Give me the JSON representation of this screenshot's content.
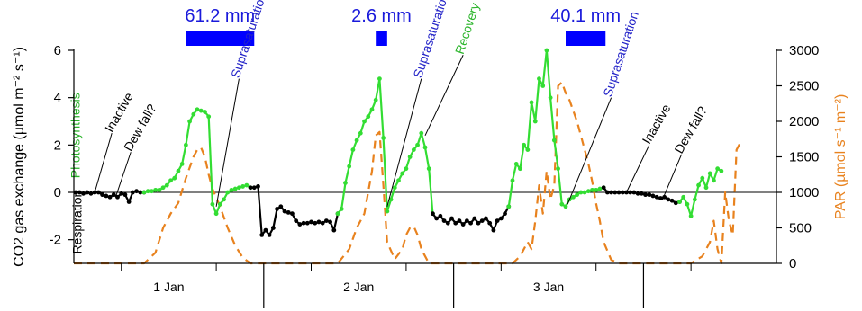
{
  "chart_data": {
    "type": "line",
    "left_axis": {
      "label": "CO2 gas exchange (µmol m⁻² s⁻¹)",
      "ylim": [
        -3,
        6
      ],
      "ticks": [
        -2,
        0,
        2,
        4,
        6
      ]
    },
    "right_axis": {
      "label": "PAR (µmol s⁻¹ m⁻²)",
      "ylim": [
        0,
        3000
      ],
      "ticks": [
        0,
        500,
        1000,
        1500,
        2000,
        2500,
        3000
      ],
      "color": "#e8821e"
    },
    "x_axis": {
      "xlim": [
        0.25,
        3.95
      ],
      "day_labels": [
        {
          "x": 0.75,
          "label": "1 Jan"
        },
        {
          "x": 1.75,
          "label": "2 Jan"
        },
        {
          "x": 2.75,
          "label": "3 Jan"
        }
      ],
      "major_ticks": [
        1.25,
        2.25,
        3.25
      ],
      "minor_ticks": [
        0.5,
        1.0,
        1.5,
        2.0,
        2.5,
        3.0,
        3.5
      ]
    },
    "rain_events": [
      {
        "label": "61.2 mm",
        "start": 0.84,
        "end": 1.2
      },
      {
        "label": "2.6 mm",
        "start": 1.84,
        "end": 1.9
      },
      {
        "label": "40.1 mm",
        "start": 2.84,
        "end": 3.05
      }
    ],
    "colors": {
      "photosynthesis": "#33dd33",
      "respiration": "#000000",
      "par": "#e8821e",
      "rain": "#0000ff"
    },
    "co2_exchange": [
      {
        "x": 0.26,
        "y": 0.0
      },
      {
        "x": 0.28,
        "y": 0.0
      },
      {
        "x": 0.3,
        "y": -0.05
      },
      {
        "x": 0.32,
        "y": 0.0
      },
      {
        "x": 0.34,
        "y": -0.05
      },
      {
        "x": 0.36,
        "y": 0.0
      },
      {
        "x": 0.38,
        "y": 0.0
      },
      {
        "x": 0.4,
        "y": -0.1
      },
      {
        "x": 0.42,
        "y": -0.15
      },
      {
        "x": 0.44,
        "y": -0.2
      },
      {
        "x": 0.46,
        "y": -0.1
      },
      {
        "x": 0.48,
        "y": -0.2
      },
      {
        "x": 0.5,
        "y": -0.05
      },
      {
        "x": 0.52,
        "y": -0.1
      },
      {
        "x": 0.54,
        "y": -0.4
      },
      {
        "x": 0.56,
        "y": 0.0
      },
      {
        "x": 0.58,
        "y": 0.05
      },
      {
        "x": 0.6,
        "y": 0.0
      },
      {
        "x": 0.62,
        "y": 0.0
      },
      {
        "x": 0.64,
        "y": 0.05
      },
      {
        "x": 0.66,
        "y": 0.05
      },
      {
        "x": 0.68,
        "y": 0.1
      },
      {
        "x": 0.7,
        "y": 0.1
      },
      {
        "x": 0.72,
        "y": 0.2
      },
      {
        "x": 0.74,
        "y": 0.3
      },
      {
        "x": 0.76,
        "y": 0.5
      },
      {
        "x": 0.78,
        "y": 0.6
      },
      {
        "x": 0.8,
        "y": 0.9
      },
      {
        "x": 0.82,
        "y": 1.2
      },
      {
        "x": 0.84,
        "y": 2.0
      },
      {
        "x": 0.86,
        "y": 3.0
      },
      {
        "x": 0.88,
        "y": 3.3
      },
      {
        "x": 0.9,
        "y": 3.5
      },
      {
        "x": 0.92,
        "y": 3.45
      },
      {
        "x": 0.94,
        "y": 3.4
      },
      {
        "x": 0.96,
        "y": 3.2
      },
      {
        "x": 0.98,
        "y": -0.5
      },
      {
        "x": 1.0,
        "y": -0.9
      },
      {
        "x": 1.02,
        "y": -0.5
      },
      {
        "x": 1.04,
        "y": -0.3
      },
      {
        "x": 1.06,
        "y": 0.0
      },
      {
        "x": 1.08,
        "y": 0.1
      },
      {
        "x": 1.1,
        "y": 0.15
      },
      {
        "x": 1.12,
        "y": 0.2
      },
      {
        "x": 1.14,
        "y": 0.25
      },
      {
        "x": 1.16,
        "y": 0.3
      },
      {
        "x": 1.18,
        "y": 0.2
      },
      {
        "x": 1.2,
        "y": 0.2
      },
      {
        "x": 1.22,
        "y": 0.25
      },
      {
        "x": 1.24,
        "y": -1.8
      },
      {
        "x": 1.26,
        "y": -1.6
      },
      {
        "x": 1.28,
        "y": -1.8
      },
      {
        "x": 1.3,
        "y": -1.5
      },
      {
        "x": 1.32,
        "y": -0.7
      },
      {
        "x": 1.34,
        "y": -0.6
      },
      {
        "x": 1.36,
        "y": -0.8
      },
      {
        "x": 1.38,
        "y": -0.85
      },
      {
        "x": 1.4,
        "y": -0.9
      },
      {
        "x": 1.42,
        "y": -1.2
      },
      {
        "x": 1.44,
        "y": -1.35
      },
      {
        "x": 1.46,
        "y": -1.3
      },
      {
        "x": 1.48,
        "y": -1.3
      },
      {
        "x": 1.5,
        "y": -1.25
      },
      {
        "x": 1.52,
        "y": -1.3
      },
      {
        "x": 1.54,
        "y": -1.25
      },
      {
        "x": 1.56,
        "y": -1.3
      },
      {
        "x": 1.58,
        "y": -1.2
      },
      {
        "x": 1.6,
        "y": -1.25
      },
      {
        "x": 1.62,
        "y": -1.6
      },
      {
        "x": 1.64,
        "y": -0.9
      },
      {
        "x": 1.66,
        "y": -0.7
      },
      {
        "x": 1.68,
        "y": 0.4
      },
      {
        "x": 1.7,
        "y": 1.1
      },
      {
        "x": 1.72,
        "y": 1.8
      },
      {
        "x": 1.74,
        "y": 2.2
      },
      {
        "x": 1.76,
        "y": 2.5
      },
      {
        "x": 1.78,
        "y": 3.0
      },
      {
        "x": 1.8,
        "y": 3.2
      },
      {
        "x": 1.82,
        "y": 3.5
      },
      {
        "x": 1.84,
        "y": 3.9
      },
      {
        "x": 1.86,
        "y": 4.8
      },
      {
        "x": 1.88,
        "y": 2.3
      },
      {
        "x": 1.9,
        "y": -0.8
      },
      {
        "x": 1.92,
        "y": -0.3
      },
      {
        "x": 1.94,
        "y": 0.2
      },
      {
        "x": 1.96,
        "y": 0.5
      },
      {
        "x": 1.98,
        "y": 0.8
      },
      {
        "x": 2.0,
        "y": 1.0
      },
      {
        "x": 2.02,
        "y": 1.5
      },
      {
        "x": 2.04,
        "y": 1.8
      },
      {
        "x": 2.06,
        "y": 2.0
      },
      {
        "x": 2.08,
        "y": 2.5
      },
      {
        "x": 2.1,
        "y": 1.9
      },
      {
        "x": 2.12,
        "y": 1.0
      },
      {
        "x": 2.14,
        "y": -0.9
      },
      {
        "x": 2.16,
        "y": -1.1
      },
      {
        "x": 2.18,
        "y": -1.0
      },
      {
        "x": 2.2,
        "y": -1.2
      },
      {
        "x": 2.22,
        "y": -1.3
      },
      {
        "x": 2.24,
        "y": -1.1
      },
      {
        "x": 2.26,
        "y": -1.3
      },
      {
        "x": 2.28,
        "y": -1.2
      },
      {
        "x": 2.3,
        "y": -1.35
      },
      {
        "x": 2.32,
        "y": -1.2
      },
      {
        "x": 2.34,
        "y": -1.3
      },
      {
        "x": 2.36,
        "y": -1.1
      },
      {
        "x": 2.38,
        "y": -1.3
      },
      {
        "x": 2.4,
        "y": -1.2
      },
      {
        "x": 2.42,
        "y": -1.1
      },
      {
        "x": 2.44,
        "y": -1.3
      },
      {
        "x": 2.46,
        "y": -1.6
      },
      {
        "x": 2.48,
        "y": -1.2
      },
      {
        "x": 2.5,
        "y": -1.1
      },
      {
        "x": 2.52,
        "y": -0.9
      },
      {
        "x": 2.54,
        "y": -0.6
      },
      {
        "x": 2.56,
        "y": 0.5
      },
      {
        "x": 2.58,
        "y": 1.2
      },
      {
        "x": 2.6,
        "y": 1.0
      },
      {
        "x": 2.62,
        "y": 2.0
      },
      {
        "x": 2.64,
        "y": 1.8
      },
      {
        "x": 2.66,
        "y": 3.8
      },
      {
        "x": 2.68,
        "y": 3.0
      },
      {
        "x": 2.7,
        "y": 4.8
      },
      {
        "x": 2.72,
        "y": 4.5
      },
      {
        "x": 2.74,
        "y": 6.0
      },
      {
        "x": 2.76,
        "y": 4.0
      },
      {
        "x": 2.78,
        "y": 2.2
      },
      {
        "x": 2.8,
        "y": 1.0
      },
      {
        "x": 2.82,
        "y": -0.5
      },
      {
        "x": 2.84,
        "y": -0.6
      },
      {
        "x": 2.86,
        "y": -0.3
      },
      {
        "x": 2.88,
        "y": -0.2
      },
      {
        "x": 2.9,
        "y": -0.1
      },
      {
        "x": 2.92,
        "y": 0.0
      },
      {
        "x": 2.94,
        "y": 0.0
      },
      {
        "x": 2.96,
        "y": 0.05
      },
      {
        "x": 2.98,
        "y": 0.1
      },
      {
        "x": 3.0,
        "y": 0.1
      },
      {
        "x": 3.02,
        "y": 0.15
      },
      {
        "x": 3.04,
        "y": 0.2
      },
      {
        "x": 3.06,
        "y": 0.0
      },
      {
        "x": 3.08,
        "y": 0.0
      },
      {
        "x": 3.1,
        "y": 0.0
      },
      {
        "x": 3.12,
        "y": 0.0
      },
      {
        "x": 3.14,
        "y": 0.0
      },
      {
        "x": 3.16,
        "y": 0.0
      },
      {
        "x": 3.18,
        "y": 0.0
      },
      {
        "x": 3.2,
        "y": 0.0
      },
      {
        "x": 3.22,
        "y": -0.05
      },
      {
        "x": 3.24,
        "y": -0.05
      },
      {
        "x": 3.26,
        "y": -0.1
      },
      {
        "x": 3.28,
        "y": -0.1
      },
      {
        "x": 3.3,
        "y": -0.15
      },
      {
        "x": 3.32,
        "y": -0.2
      },
      {
        "x": 3.34,
        "y": -0.25
      },
      {
        "x": 3.36,
        "y": -0.2
      },
      {
        "x": 3.38,
        "y": -0.3
      },
      {
        "x": 3.4,
        "y": -0.35
      },
      {
        "x": 3.42,
        "y": -0.45
      },
      {
        "x": 3.44,
        "y": -0.4
      },
      {
        "x": 3.46,
        "y": -0.2
      },
      {
        "x": 3.48,
        "y": -0.5
      },
      {
        "x": 3.5,
        "y": -1.0
      },
      {
        "x": 3.52,
        "y": -0.3
      },
      {
        "x": 3.54,
        "y": 0.3
      },
      {
        "x": 3.56,
        "y": 0.6
      },
      {
        "x": 3.58,
        "y": 0.2
      },
      {
        "x": 3.6,
        "y": 0.8
      },
      {
        "x": 3.62,
        "y": 0.5
      },
      {
        "x": 3.64,
        "y": 1.0
      },
      {
        "x": 3.66,
        "y": 0.9
      }
    ],
    "co2_segments": [
      {
        "from": 0.26,
        "to": 0.62,
        "kind": "respiration"
      },
      {
        "from": 0.62,
        "to": 1.18,
        "kind": "photosynthesis"
      },
      {
        "from": 1.18,
        "to": 1.64,
        "kind": "respiration"
      },
      {
        "from": 1.64,
        "to": 2.14,
        "kind": "photosynthesis"
      },
      {
        "from": 2.14,
        "to": 2.54,
        "kind": "respiration"
      },
      {
        "from": 2.54,
        "to": 3.04,
        "kind": "photosynthesis"
      },
      {
        "from": 3.04,
        "to": 3.44,
        "kind": "respiration"
      },
      {
        "from": 3.44,
        "to": 3.66,
        "kind": "photosynthesis"
      }
    ],
    "par": [
      {
        "x": 0.25,
        "y": 0
      },
      {
        "x": 0.4,
        "y": 0
      },
      {
        "x": 0.62,
        "y": 0
      },
      {
        "x": 0.68,
        "y": 150
      },
      {
        "x": 0.72,
        "y": 500
      },
      {
        "x": 0.76,
        "y": 700
      },
      {
        "x": 0.8,
        "y": 850
      },
      {
        "x": 0.84,
        "y": 1200
      },
      {
        "x": 0.88,
        "y": 1500
      },
      {
        "x": 0.9,
        "y": 1600
      },
      {
        "x": 0.92,
        "y": 1630
      },
      {
        "x": 0.94,
        "y": 1500
      },
      {
        "x": 0.96,
        "y": 1250
      },
      {
        "x": 0.98,
        "y": 1050
      },
      {
        "x": 1.02,
        "y": 800
      },
      {
        "x": 1.06,
        "y": 500
      },
      {
        "x": 1.1,
        "y": 250
      },
      {
        "x": 1.14,
        "y": 80
      },
      {
        "x": 1.18,
        "y": 0
      },
      {
        "x": 1.64,
        "y": 0
      },
      {
        "x": 1.7,
        "y": 200
      },
      {
        "x": 1.74,
        "y": 500
      },
      {
        "x": 1.78,
        "y": 700
      },
      {
        "x": 1.82,
        "y": 1300
      },
      {
        "x": 1.84,
        "y": 1800
      },
      {
        "x": 1.86,
        "y": 1850
      },
      {
        "x": 1.88,
        "y": 1100
      },
      {
        "x": 1.9,
        "y": 300
      },
      {
        "x": 1.94,
        "y": 60
      },
      {
        "x": 1.98,
        "y": 200
      },
      {
        "x": 2.0,
        "y": 400
      },
      {
        "x": 2.02,
        "y": 500
      },
      {
        "x": 2.04,
        "y": 520
      },
      {
        "x": 2.06,
        "y": 400
      },
      {
        "x": 2.08,
        "y": 200
      },
      {
        "x": 2.12,
        "y": 0
      },
      {
        "x": 2.56,
        "y": 0
      },
      {
        "x": 2.6,
        "y": 100
      },
      {
        "x": 2.64,
        "y": 300
      },
      {
        "x": 2.66,
        "y": 200
      },
      {
        "x": 2.68,
        "y": 600
      },
      {
        "x": 2.7,
        "y": 1100
      },
      {
        "x": 2.72,
        "y": 700
      },
      {
        "x": 2.74,
        "y": 1300
      },
      {
        "x": 2.76,
        "y": 900
      },
      {
        "x": 2.78,
        "y": 1100
      },
      {
        "x": 2.8,
        "y": 2500
      },
      {
        "x": 2.82,
        "y": 2550
      },
      {
        "x": 2.84,
        "y": 2400
      },
      {
        "x": 2.86,
        "y": 2300
      },
      {
        "x": 2.88,
        "y": 2150
      },
      {
        "x": 2.9,
        "y": 2000
      },
      {
        "x": 2.92,
        "y": 1800
      },
      {
        "x": 2.94,
        "y": 1600
      },
      {
        "x": 2.96,
        "y": 1400
      },
      {
        "x": 2.98,
        "y": 1150
      },
      {
        "x": 3.0,
        "y": 850
      },
      {
        "x": 3.02,
        "y": 600
      },
      {
        "x": 3.04,
        "y": 300
      },
      {
        "x": 3.08,
        "y": 50
      },
      {
        "x": 3.12,
        "y": 0
      },
      {
        "x": 3.5,
        "y": 0
      },
      {
        "x": 3.56,
        "y": 100
      },
      {
        "x": 3.6,
        "y": 300
      },
      {
        "x": 3.62,
        "y": 600
      },
      {
        "x": 3.64,
        "y": 200
      },
      {
        "x": 3.66,
        "y": 0
      },
      {
        "x": 3.68,
        "y": 1000
      },
      {
        "x": 3.7,
        "y": 600
      },
      {
        "x": 3.72,
        "y": 400
      },
      {
        "x": 3.74,
        "y": 1600
      },
      {
        "x": 3.76,
        "y": 1700
      }
    ],
    "annotations": [
      {
        "text": "Photosynthesis",
        "color": "green",
        "x": 0.28,
        "y": 0.6,
        "rotate": -90
      },
      {
        "text": "Respiration",
        "color": "black",
        "x": 0.29,
        "y": -2.6,
        "rotate": -90
      },
      {
        "text": "Inactive",
        "color": "black",
        "x": 0.45,
        "y": 2.5,
        "rotate": -60,
        "lead_to": {
          "x": 0.36,
          "y": 0.0
        }
      },
      {
        "text": "Dew fall?",
        "color": "black",
        "x": 0.55,
        "y": 1.7,
        "rotate": -60,
        "lead_to": {
          "x": 0.47,
          "y": -0.2
        }
      },
      {
        "text": "Suprasaturation",
        "color": "blue",
        "x": 1.12,
        "y": 4.8,
        "rotate": -72,
        "lead_to": {
          "x": 1.0,
          "y": -0.6
        }
      },
      {
        "text": "Suprasaturation",
        "color": "blue",
        "x": 2.08,
        "y": 4.8,
        "rotate": -72,
        "lead_to": {
          "x": 1.9,
          "y": -0.6
        }
      },
      {
        "text": "Recovery",
        "color": "green",
        "x": 2.3,
        "y": 5.8,
        "rotate": -72,
        "lead_to": {
          "x": 2.1,
          "y": 2.4
        }
      },
      {
        "text": "Suprasaturation",
        "color": "blue",
        "x": 3.08,
        "y": 4.0,
        "rotate": -72,
        "lead_to": {
          "x": 2.85,
          "y": -0.5
        }
      },
      {
        "text": "Inactive",
        "color": "black",
        "x": 3.28,
        "y": 2.0,
        "rotate": -60,
        "lead_to": {
          "x": 3.16,
          "y": 0.0
        }
      },
      {
        "text": "Dew fall?",
        "color": "black",
        "x": 3.45,
        "y": 1.6,
        "rotate": -60,
        "lead_to": {
          "x": 3.35,
          "y": -0.3
        }
      }
    ]
  }
}
